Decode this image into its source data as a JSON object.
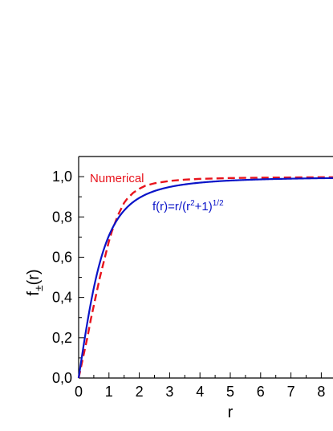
{
  "chart_data": {
    "type": "line",
    "title": "",
    "xlabel": "r",
    "ylabel": {
      "main": "f",
      "subscript": "±",
      "suffix": "(r)"
    },
    "xlim": [
      0,
      8.45
    ],
    "ylim": [
      0,
      1.1
    ],
    "x_ticks": [
      "0",
      "1",
      "2",
      "3",
      "4",
      "5",
      "6",
      "7",
      "8"
    ],
    "y_ticks": [
      "0,0",
      "0,2",
      "0,4",
      "0,6",
      "0,8",
      "1,0"
    ],
    "grid": false,
    "series": [
      {
        "name": "Numerical",
        "color": "#e8141d",
        "style": "dashed",
        "x": [
          0,
          0.1,
          0.2,
          0.3,
          0.4,
          0.5,
          0.6,
          0.7,
          0.8,
          0.9,
          1.0,
          1.1,
          1.2,
          1.3,
          1.4,
          1.5,
          1.6,
          1.8,
          2.0,
          2.2,
          2.5,
          3.0,
          3.5,
          4.0,
          5.0,
          6.0,
          7.0,
          8.0,
          8.45
        ],
        "y": [
          0,
          0.07,
          0.14,
          0.21,
          0.29,
          0.36,
          0.43,
          0.5,
          0.56,
          0.62,
          0.68,
          0.73,
          0.77,
          0.81,
          0.84,
          0.87,
          0.89,
          0.92,
          0.94,
          0.955,
          0.967,
          0.979,
          0.985,
          0.989,
          0.993,
          0.995,
          0.996,
          0.997,
          0.997
        ]
      },
      {
        "name": "f(r)=r/(r²+1)^{1/2}",
        "formula_text": {
          "main": "f(r)=r/(r",
          "sup1": "2",
          "mid": "+1)",
          "sup2": "1/2"
        },
        "color": "#0a14c8",
        "style": "solid",
        "function": "r/sqrt(r^2+1)"
      }
    ],
    "annotations": {
      "numerical_label": "Numerical"
    }
  }
}
